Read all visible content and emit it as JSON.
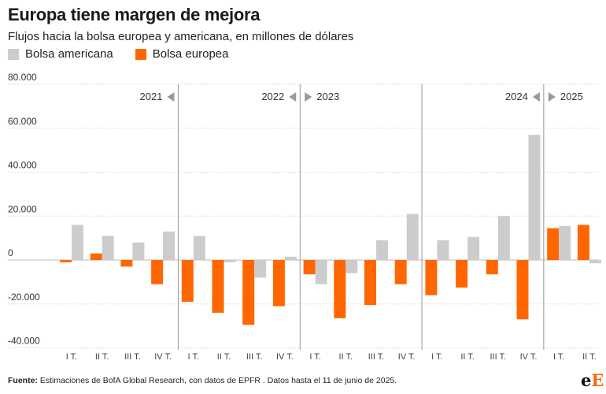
{
  "title": "Europa tiene margen de mejora",
  "subtitle": "Flujos hacia la bolsa europea y americana, en millones de dólares",
  "legend": [
    {
      "label": "Bolsa americana",
      "color": "#cccccc"
    },
    {
      "label": "Bolsa europea",
      "color": "#ff6600"
    }
  ],
  "footer": {
    "source_label": "Fuente:",
    "source_text": "Estimaciones de BofA Global Research, con datos de EPFR . Datos hasta el 11 de junio de 2025."
  },
  "logo": {
    "part1": "e",
    "part2": "E"
  },
  "chart_data": {
    "type": "bar",
    "title": "Europa tiene margen de mejora",
    "subtitle": "Flujos hacia la bolsa europea y americana, en millones de dólares",
    "xlabel": "",
    "ylabel": "",
    "ylim": [
      -40000,
      80000
    ],
    "yticks": [
      80000,
      60000,
      40000,
      20000,
      0,
      -20000,
      -40000
    ],
    "ytick_labels": [
      "80.000",
      "60.000",
      "40.000",
      "20.000",
      "0",
      "-20.000",
      "-40.000"
    ],
    "grid": true,
    "legend_position": "top-left",
    "categories": [
      "I T.",
      "II T.",
      "III T.",
      "IV T.",
      "I T.",
      "II T.",
      "III T.",
      "IV T.",
      "I T.",
      "II T.",
      "III T.",
      "IV T.",
      "I T.",
      "II T.",
      "III T.",
      "IV T.",
      "I T.",
      "II T."
    ],
    "years": [
      "2021",
      "2022",
      "2023",
      "2024",
      "2025"
    ],
    "series": [
      {
        "name": "Bolsa europea",
        "color": "#ff6600",
        "values": [
          -1000,
          3000,
          -3000,
          -11000,
          -19000,
          -24000,
          -29500,
          -21000,
          -6500,
          -26500,
          -20500,
          -11000,
          -16000,
          -12500,
          -6500,
          -27000,
          14500,
          16000
        ]
      },
      {
        "name": "Bolsa americana",
        "color": "#cccccc",
        "values": [
          16000,
          11000,
          8000,
          13000,
          11000,
          -1000,
          -8000,
          1500,
          -11000,
          -6000,
          9000,
          21000,
          9000,
          10500,
          20000,
          57000,
          15500,
          -1500
        ]
      }
    ]
  }
}
